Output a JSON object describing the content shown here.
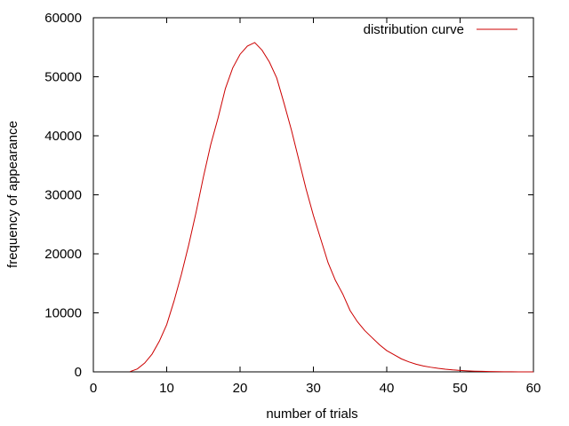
{
  "chart_data": {
    "type": "line",
    "title": "",
    "xlabel": "number of trials",
    "ylabel": "frequency of appearance",
    "xlim": [
      0,
      60
    ],
    "ylim": [
      0,
      60000
    ],
    "xticks": [
      0,
      10,
      20,
      30,
      40,
      50,
      60
    ],
    "yticks": [
      0,
      10000,
      20000,
      30000,
      40000,
      50000,
      60000
    ],
    "xtick_labels": [
      "0",
      "10",
      "20",
      "30",
      "40",
      "50",
      "60"
    ],
    "ytick_labels": [
      "0",
      "10000",
      "20000",
      "30000",
      "40000",
      "50000",
      "60000"
    ],
    "grid": false,
    "legend_position": "top-right",
    "series": [
      {
        "name": "distribution curve",
        "color": "#cc0000",
        "x": [
          5,
          6,
          7,
          8,
          9,
          10,
          11,
          12,
          13,
          14,
          15,
          16,
          17,
          18,
          19,
          20,
          21,
          22,
          23,
          24,
          25,
          26,
          27,
          28,
          29,
          30,
          31,
          32,
          33,
          34,
          35,
          36,
          37,
          38,
          39,
          40,
          41,
          42,
          43,
          44,
          45,
          46,
          47,
          48,
          49,
          50,
          51,
          52,
          53,
          54,
          55,
          56,
          57,
          58,
          59,
          60
        ],
        "values": [
          50,
          500,
          1500,
          3000,
          5200,
          8000,
          12000,
          16500,
          21500,
          27000,
          33000,
          38500,
          43000,
          48000,
          51500,
          53800,
          55200,
          55800,
          54500,
          52500,
          49800,
          45500,
          41000,
          36000,
          31000,
          26500,
          22500,
          18500,
          15500,
          13200,
          10400,
          8500,
          7000,
          5800,
          4600,
          3600,
          2900,
          2200,
          1700,
          1300,
          1000,
          780,
          600,
          450,
          330,
          240,
          170,
          120,
          85,
          60,
          40,
          25,
          15,
          8,
          4,
          2
        ]
      }
    ]
  }
}
